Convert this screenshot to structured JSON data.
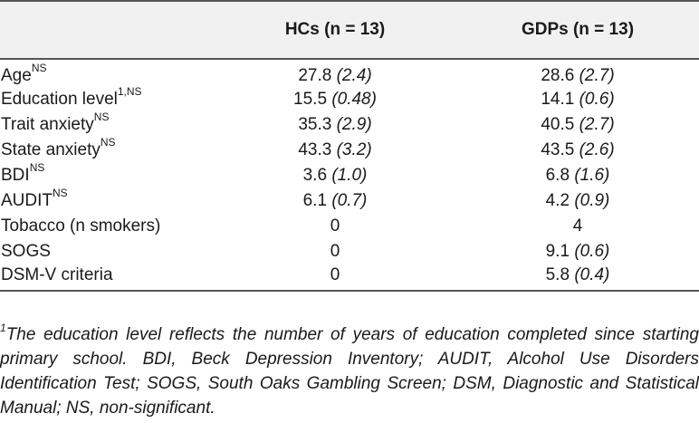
{
  "header": {
    "col0": "",
    "col1": "HCs (n = 13)",
    "col2": "GDPs (n = 13)"
  },
  "rows": [
    {
      "label": "Age",
      "sup": "NS",
      "hc_mean": "27.8",
      "hc_sd": "(2.4)",
      "gdp_mean": "28.6",
      "gdp_sd": "(2.7)"
    },
    {
      "label": "Education level",
      "sup": "1,NS",
      "hc_mean": "15.5",
      "hc_sd": "(0.48)",
      "gdp_mean": "14.1",
      "gdp_sd": "(0.6)"
    },
    {
      "label": "Trait anxiety",
      "sup": "NS",
      "hc_mean": "35.3",
      "hc_sd": "(2.9)",
      "gdp_mean": "40.5",
      "gdp_sd": "(2.7)"
    },
    {
      "label": "State anxiety",
      "sup": "NS",
      "hc_mean": "43.3",
      "hc_sd": "(3.2)",
      "gdp_mean": "43.5",
      "gdp_sd": "(2.6)"
    },
    {
      "label": "BDI",
      "sup": "NS",
      "hc_mean": "3.6",
      "hc_sd": "(1.0)",
      "gdp_mean": "6.8",
      "gdp_sd": "(1.6)"
    },
    {
      "label": "AUDIT",
      "sup": "NS",
      "hc_mean": "6.1",
      "hc_sd": "(0.7)",
      "gdp_mean": "4.2",
      "gdp_sd": "(0.9)"
    },
    {
      "label": "Tobacco (n smokers)",
      "sup": "",
      "hc_mean": "0",
      "hc_sd": "",
      "gdp_mean": "4",
      "gdp_sd": ""
    },
    {
      "label": "SOGS",
      "sup": "",
      "hc_mean": "0",
      "hc_sd": "",
      "gdp_mean": "9.1",
      "gdp_sd": "(0.6)"
    },
    {
      "label": "DSM-V criteria",
      "sup": "",
      "hc_mean": "0",
      "hc_sd": "",
      "gdp_mean": "5.8",
      "gdp_sd": "(0.4)"
    }
  ],
  "footnote": {
    "marker": "1",
    "text": "The education level reflects the number of years of education completed since starting primary school. BDI, Beck Depression Inventory; AUDIT, Alcohol Use Disorders Identification Test; SOGS, South Oaks Gambling Screen; DSM, Diagnostic and Statistical Manual; NS, non-significant."
  }
}
